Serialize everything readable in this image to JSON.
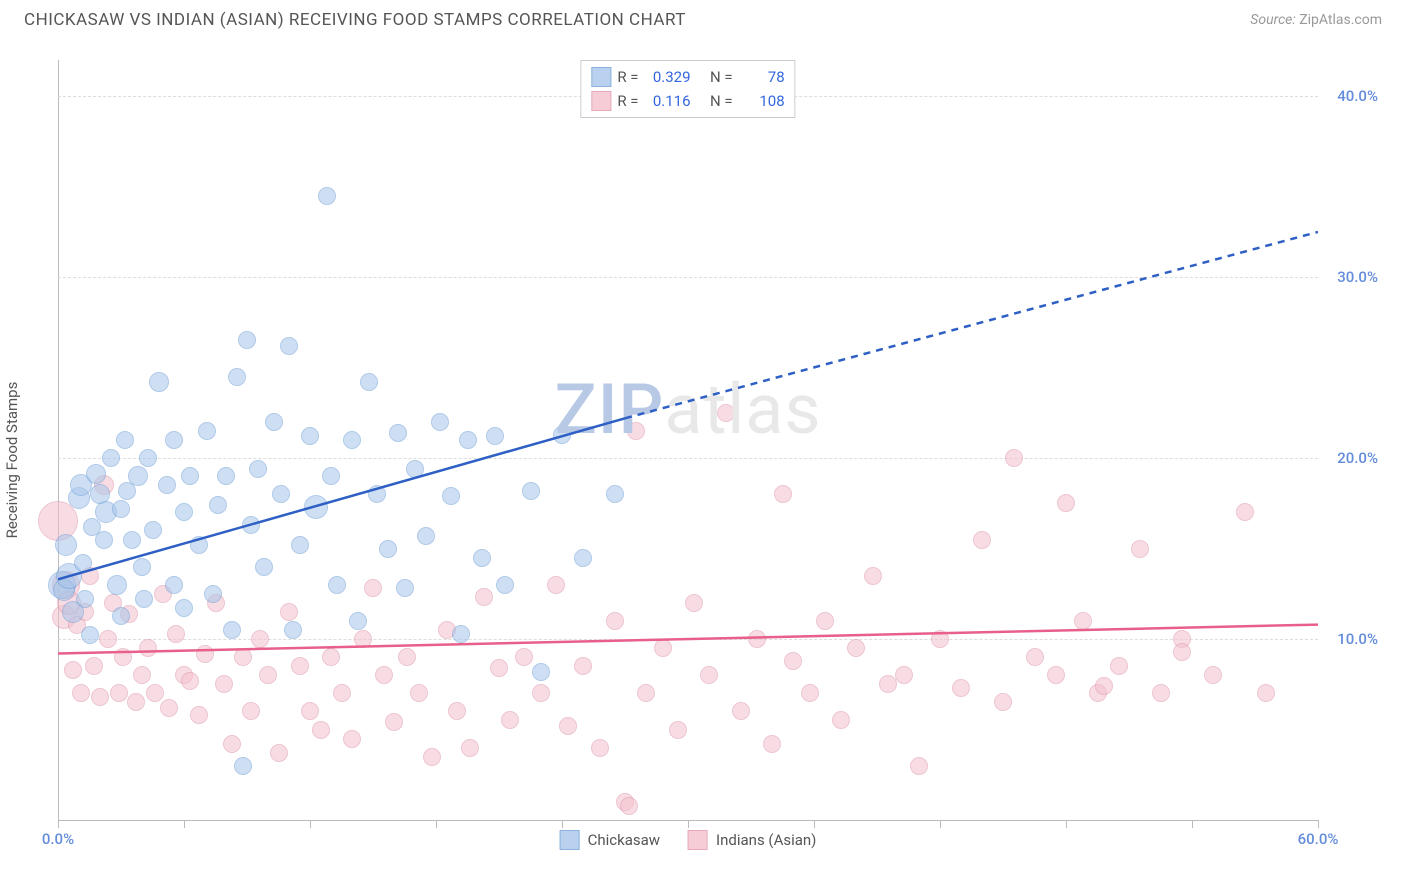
{
  "header": {
    "title": "CHICKASAW VS INDIAN (ASIAN) RECEIVING FOOD STAMPS CORRELATION CHART",
    "source_label": "Source:",
    "source_value": "ZipAtlas.com"
  },
  "ylabel": "Receiving Food Stamps",
  "watermark": {
    "z": "ZIP",
    "rest": "atlas"
  },
  "chart": {
    "type": "scatter",
    "background_color": "#ffffff",
    "grid_color": "#dddddd",
    "axis_color": "#bbbbbb",
    "xlim": [
      0,
      60
    ],
    "ylim": [
      0,
      42
    ],
    "y_ticks": [
      10,
      20,
      30,
      40
    ],
    "y_tick_labels": [
      "10.0%",
      "20.0%",
      "30.0%",
      "40.0%"
    ],
    "x_tick_positions": [
      0,
      6,
      12,
      18,
      24,
      30,
      36,
      42,
      48,
      54,
      60
    ],
    "x_axis_labels": [
      {
        "pos": 0,
        "label": "0.0%"
      },
      {
        "pos": 60,
        "label": "60.0%"
      }
    ],
    "tick_label_color": "#638cdb",
    "tick_label_fontsize": 15
  },
  "series": {
    "chickasaw": {
      "label": "Chickasaw",
      "fill_color": "#a8c6ea",
      "fill_opacity": 0.55,
      "stroke_color": "#6f9fd8",
      "stroke_opacity": 0.85,
      "marker_base_size": 20,
      "R": "0.329",
      "N": "78",
      "trend": {
        "color": "#2e5fc4",
        "width": 2.5,
        "solid": {
          "x1": 0,
          "y1": 13.3,
          "x2": 27,
          "y2": 22.2
        },
        "dashed": {
          "x1": 27,
          "y1": 22.2,
          "x2": 60,
          "y2": 32.5
        }
      },
      "points": [
        [
          0.2,
          13,
          28
        ],
        [
          0.3,
          12.7,
          22
        ],
        [
          0.4,
          15.2,
          22
        ],
        [
          0.5,
          13.5,
          26
        ],
        [
          0.7,
          11.5,
          22
        ],
        [
          1.0,
          17.8,
          22
        ],
        [
          1.1,
          18.5,
          22
        ],
        [
          1.2,
          14.2,
          18
        ],
        [
          1.3,
          12.2,
          18
        ],
        [
          1.5,
          10.2,
          18
        ],
        [
          1.6,
          16.2,
          18
        ],
        [
          1.8,
          19.1,
          20
        ],
        [
          2.0,
          18.0,
          20
        ],
        [
          2.2,
          15.5,
          18
        ],
        [
          2.3,
          17.0,
          22
        ],
        [
          2.5,
          20.0,
          18
        ],
        [
          2.8,
          13.0,
          20
        ],
        [
          3.0,
          17.2,
          18
        ],
        [
          3.0,
          11.3,
          18
        ],
        [
          3.2,
          21.0,
          18
        ],
        [
          3.3,
          18.2,
          18
        ],
        [
          3.5,
          15.5,
          18
        ],
        [
          3.8,
          19.0,
          20
        ],
        [
          4.0,
          14.0,
          18
        ],
        [
          4.1,
          12.2,
          18
        ],
        [
          4.3,
          20.0,
          18
        ],
        [
          4.5,
          16.0,
          18
        ],
        [
          4.8,
          24.2,
          20
        ],
        [
          5.2,
          18.5,
          18
        ],
        [
          5.5,
          13.0,
          18
        ],
        [
          5.5,
          21.0,
          18
        ],
        [
          6.0,
          17.0,
          18
        ],
        [
          6.0,
          11.7,
          18
        ],
        [
          6.3,
          19.0,
          18
        ],
        [
          6.7,
          15.2,
          18
        ],
        [
          7.1,
          21.5,
          18
        ],
        [
          7.4,
          12.5,
          18
        ],
        [
          7.6,
          17.4,
          18
        ],
        [
          8.0,
          19.0,
          18
        ],
        [
          8.3,
          10.5,
          18
        ],
        [
          8.5,
          24.5,
          18
        ],
        [
          8.8,
          3.0,
          18
        ],
        [
          9.0,
          26.5,
          18
        ],
        [
          9.2,
          16.3,
          18
        ],
        [
          9.5,
          19.4,
          18
        ],
        [
          9.8,
          14.0,
          18
        ],
        [
          10.3,
          22.0,
          18
        ],
        [
          10.6,
          18.0,
          18
        ],
        [
          11.0,
          26.2,
          18
        ],
        [
          11.2,
          10.5,
          18
        ],
        [
          11.5,
          15.2,
          18
        ],
        [
          12.0,
          21.2,
          18
        ],
        [
          12.3,
          17.3,
          24
        ],
        [
          12.8,
          34.5,
          18
        ],
        [
          13.0,
          19.0,
          18
        ],
        [
          13.3,
          13.0,
          18
        ],
        [
          14.0,
          21.0,
          18
        ],
        [
          14.3,
          11.0,
          18
        ],
        [
          14.8,
          24.2,
          18
        ],
        [
          15.2,
          18.0,
          18
        ],
        [
          15.7,
          15.0,
          18
        ],
        [
          16.2,
          21.4,
          18
        ],
        [
          16.5,
          12.8,
          18
        ],
        [
          17.0,
          19.4,
          18
        ],
        [
          17.5,
          15.7,
          18
        ],
        [
          18.2,
          22.0,
          18
        ],
        [
          18.7,
          17.9,
          18
        ],
        [
          19.2,
          10.3,
          18
        ],
        [
          19.5,
          21.0,
          18
        ],
        [
          20.2,
          14.5,
          18
        ],
        [
          20.8,
          21.2,
          18
        ],
        [
          21.3,
          13.0,
          18
        ],
        [
          22.5,
          18.2,
          18
        ],
        [
          23.0,
          8.2,
          18
        ],
        [
          24.0,
          21.3,
          18
        ],
        [
          25.0,
          14.5,
          18
        ],
        [
          26.5,
          18.0,
          18
        ]
      ]
    },
    "indians": {
      "label": "Indians (Asian)",
      "fill_color": "#f4c1cd",
      "fill_opacity": 0.55,
      "stroke_color": "#e096ab",
      "stroke_opacity": 0.85,
      "marker_base_size": 20,
      "R": "0.116",
      "N": "108",
      "trend": {
        "color": "#e85f8b",
        "width": 2.5,
        "solid": {
          "x1": 0,
          "y1": 9.2,
          "x2": 60,
          "y2": 10.8
        }
      },
      "points": [
        [
          0.0,
          16.5,
          40
        ],
        [
          0.3,
          11.2,
          24
        ],
        [
          0.4,
          13.0,
          28
        ],
        [
          0.5,
          12.0,
          24
        ],
        [
          0.7,
          8.3,
          18
        ],
        [
          0.9,
          10.8,
          18
        ],
        [
          1.1,
          7.0,
          18
        ],
        [
          1.3,
          11.5,
          18
        ],
        [
          1.5,
          13.5,
          18
        ],
        [
          1.7,
          8.5,
          18
        ],
        [
          2.0,
          6.8,
          18
        ],
        [
          2.2,
          18.5,
          20
        ],
        [
          2.4,
          10.0,
          18
        ],
        [
          2.6,
          12.0,
          18
        ],
        [
          2.9,
          7.0,
          18
        ],
        [
          3.1,
          9.0,
          18
        ],
        [
          3.4,
          11.4,
          18
        ],
        [
          3.7,
          6.5,
          18
        ],
        [
          4.0,
          8.0,
          18
        ],
        [
          4.3,
          9.5,
          18
        ],
        [
          4.6,
          7.0,
          18
        ],
        [
          5.0,
          12.5,
          18
        ],
        [
          5.3,
          6.2,
          18
        ],
        [
          5.6,
          10.3,
          18
        ],
        [
          6.0,
          8.0,
          18
        ],
        [
          6.3,
          7.7,
          18
        ],
        [
          6.7,
          5.8,
          18
        ],
        [
          7.0,
          9.2,
          18
        ],
        [
          7.5,
          12.0,
          18
        ],
        [
          7.9,
          7.5,
          18
        ],
        [
          8.3,
          4.2,
          18
        ],
        [
          8.8,
          9.0,
          18
        ],
        [
          9.2,
          6.0,
          18
        ],
        [
          9.6,
          10.0,
          18
        ],
        [
          10.0,
          8.0,
          18
        ],
        [
          10.5,
          3.7,
          18
        ],
        [
          11.0,
          11.5,
          18
        ],
        [
          11.5,
          8.5,
          18
        ],
        [
          12.0,
          6.0,
          18
        ],
        [
          12.5,
          5.0,
          18
        ],
        [
          13.0,
          9.0,
          18
        ],
        [
          13.5,
          7.0,
          18
        ],
        [
          14.0,
          4.5,
          18
        ],
        [
          14.5,
          10.0,
          18
        ],
        [
          15.0,
          12.8,
          18
        ],
        [
          15.5,
          8.0,
          18
        ],
        [
          16.0,
          5.4,
          18
        ],
        [
          16.6,
          9.0,
          18
        ],
        [
          17.2,
          7.0,
          18
        ],
        [
          17.8,
          3.5,
          18
        ],
        [
          18.5,
          10.5,
          18
        ],
        [
          19.0,
          6.0,
          18
        ],
        [
          19.6,
          4.0,
          18
        ],
        [
          20.3,
          12.3,
          18
        ],
        [
          21.0,
          8.4,
          18
        ],
        [
          21.5,
          5.5,
          18
        ],
        [
          22.2,
          9.0,
          18
        ],
        [
          23.0,
          7.0,
          18
        ],
        [
          23.7,
          13.0,
          18
        ],
        [
          24.3,
          5.2,
          18
        ],
        [
          25.0,
          8.5,
          18
        ],
        [
          25.8,
          4.0,
          18
        ],
        [
          26.5,
          11.0,
          18
        ],
        [
          27.0,
          1.0,
          18
        ],
        [
          27.2,
          0.8,
          18
        ],
        [
          27.5,
          21.5,
          18
        ],
        [
          28.0,
          7.0,
          18
        ],
        [
          28.8,
          9.5,
          18
        ],
        [
          29.5,
          5.0,
          18
        ],
        [
          30.3,
          12.0,
          18
        ],
        [
          31.0,
          8.0,
          18
        ],
        [
          31.8,
          22.5,
          18
        ],
        [
          32.5,
          6.0,
          18
        ],
        [
          33.3,
          10.0,
          18
        ],
        [
          34.0,
          4.2,
          18
        ],
        [
          34.5,
          18.0,
          18
        ],
        [
          35.0,
          8.8,
          18
        ],
        [
          35.8,
          7.0,
          18
        ],
        [
          36.5,
          11.0,
          18
        ],
        [
          37.3,
          5.5,
          18
        ],
        [
          38.0,
          9.5,
          18
        ],
        [
          38.8,
          13.5,
          18
        ],
        [
          39.5,
          7.5,
          18
        ],
        [
          40.3,
          8.0,
          18
        ],
        [
          41.0,
          3.0,
          18
        ],
        [
          42.0,
          10.0,
          18
        ],
        [
          43.0,
          7.3,
          18
        ],
        [
          44.0,
          15.5,
          18
        ],
        [
          45.0,
          6.5,
          18
        ],
        [
          45.5,
          20.0,
          18
        ],
        [
          46.5,
          9.0,
          18
        ],
        [
          47.5,
          8.0,
          18
        ],
        [
          48.0,
          17.5,
          18
        ],
        [
          48.8,
          11.0,
          18
        ],
        [
          49.5,
          7.0,
          18
        ],
        [
          49.8,
          7.4,
          18
        ],
        [
          50.5,
          8.5,
          18
        ],
        [
          51.5,
          15.0,
          18
        ],
        [
          52.5,
          7.0,
          18
        ],
        [
          53.5,
          10.0,
          18
        ],
        [
          53.5,
          9.3,
          18
        ],
        [
          55.0,
          8.0,
          18
        ],
        [
          56.5,
          17.0,
          18
        ],
        [
          57.5,
          7.0,
          18
        ]
      ]
    }
  },
  "stat_legend": {
    "R_label": "R =",
    "N_label": "N ="
  }
}
